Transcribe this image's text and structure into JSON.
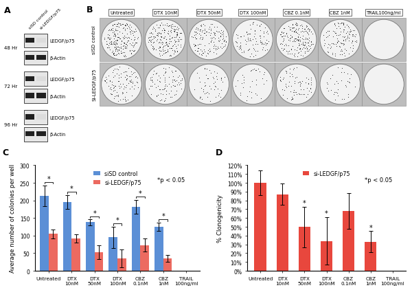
{
  "chart_data": [
    {
      "type": "bar",
      "label": "C",
      "categories": [
        "Untreated",
        "DTX\n10nM",
        "DTX\n50nM",
        "DTX\n100nM",
        "CBZ\n0.1nM",
        "CBZ\n1nM",
        "TRAIL\n100ng/ml"
      ],
      "series": [
        {
          "name": "siSD control",
          "color": "#5b8fd6",
          "values": [
            213,
            195,
            138,
            95,
            182,
            125,
            0
          ],
          "errors": [
            30,
            20,
            8,
            30,
            20,
            12,
            0
          ]
        },
        {
          "name": "si-LEDGF/p75",
          "color": "#ec6a60",
          "values": [
            105,
            92,
            53,
            35,
            73,
            35,
            0
          ],
          "errors": [
            13,
            12,
            20,
            25,
            18,
            10,
            0
          ]
        }
      ],
      "y_label": "Average number of colonies per well",
      "ylim": [
        0,
        300
      ],
      "yticks": [
        0,
        50,
        100,
        150,
        200,
        250,
        300
      ],
      "legend": "upper center",
      "grid": false,
      "significant": [
        true,
        true,
        true,
        true,
        true,
        true,
        false
      ],
      "significance_text": "*",
      "annotations": [
        "*p < 0.05"
      ]
    },
    {
      "type": "bar",
      "label": "D",
      "categories": [
        "Untreated",
        "DTX\n10nM",
        "DTX\n50nM",
        "DTX\n100nM",
        "CBZ\n0.1nM",
        "CBZ\n1nM",
        "TRAIL\n100ng/ml"
      ],
      "series": [
        {
          "name": "si-LEDGF/p75",
          "color": "#e8473d",
          "values": [
            100,
            87,
            50,
            34,
            68,
            33,
            0
          ],
          "errors": [
            14,
            12,
            23,
            27,
            20,
            12,
            0
          ]
        }
      ],
      "y_label": "% Clonogenicity",
      "ylim": [
        0,
        120
      ],
      "yticks": [
        {
          "value": 0,
          "label": "0%"
        },
        {
          "value": 10,
          "label": "10%"
        },
        {
          "value": 20,
          "label": "20%"
        },
        {
          "value": 30,
          "label": "30%"
        },
        {
          "value": 40,
          "label": "40%"
        },
        {
          "value": 50,
          "label": "50%"
        },
        {
          "value": 60,
          "label": "60%"
        },
        {
          "value": 70,
          "label": "70%"
        },
        {
          "value": 80,
          "label": "80%"
        },
        {
          "value": 90,
          "label": "90%"
        },
        {
          "value": 100,
          "label": "100%"
        },
        {
          "value": 110,
          "label": "110%"
        },
        {
          "value": 120,
          "label": "120%"
        }
      ],
      "legend": "upper center",
      "grid": false,
      "significant": [
        false,
        false,
        true,
        true,
        false,
        true,
        false
      ],
      "significance_text": "*",
      "annotations": [
        "*p < 0.05"
      ]
    }
  ],
  "western_blot": {
    "label": "A",
    "lanes": [
      "siSD control",
      "si-LEDGF/p75"
    ],
    "timepoints": [
      {
        "label": "48 Hr",
        "bands": [
          {
            "label": "LEDGF/p75",
            "present": [
              true,
              false
            ]
          },
          {
            "label": "β-Actin",
            "present": [
              true,
              true
            ]
          }
        ]
      },
      {
        "label": "72 Hr",
        "bands": [
          {
            "label": "LEDGF/p75",
            "present": [
              true,
              false
            ]
          },
          {
            "label": "β-Actin",
            "present": [
              true,
              true
            ]
          }
        ]
      },
      {
        "label": "96 Hr",
        "bands": [
          {
            "label": "LEDGF/p75",
            "present": [
              true,
              false
            ]
          },
          {
            "label": "β-Actin",
            "present": [
              true,
              true
            ]
          }
        ]
      }
    ]
  },
  "colony_plates": {
    "label": "B",
    "columns": [
      "Untreated",
      "DTX 10nM",
      "DTX 50nM",
      "DTX 100nM",
      "CBZ 0.1nM",
      "CBZ 1nM",
      "TRAIL100ng/ml"
    ],
    "rows": [
      "siSD control",
      "Si-LEDGF/p75"
    ]
  }
}
